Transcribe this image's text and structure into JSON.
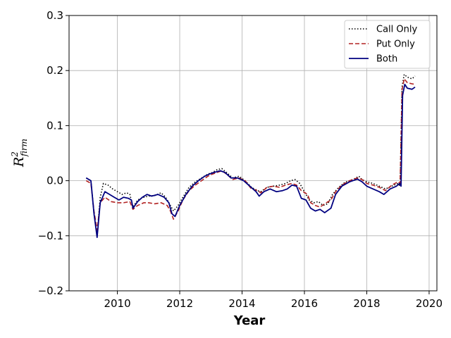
{
  "chart_data": {
    "type": "line",
    "xlabel": "Year",
    "ylabel": {
      "base": "R",
      "sup": "2",
      "sub": "firm"
    },
    "xlim": [
      2008.45,
      2020.25
    ],
    "ylim": [
      -0.2,
      0.3
    ],
    "xticks": [
      2010,
      2012,
      2014,
      2016,
      2018,
      2020
    ],
    "yticks": [
      -0.2,
      -0.1,
      0.0,
      0.1,
      0.2,
      0.3
    ],
    "xtick_labels": [
      "2010",
      "2012",
      "2014",
      "2016",
      "2018",
      "2020"
    ],
    "ytick_labels": [
      "−0.2",
      "−0.1",
      "0.0",
      "0.1",
      "0.2",
      "0.3"
    ],
    "grid": true,
    "legend_position": "top-right",
    "series": [
      {
        "name": "Call Only",
        "color": "#000000",
        "style": "dotted",
        "points": [
          [
            2009.0,
            0.005
          ],
          [
            2009.15,
            0.0
          ],
          [
            2009.25,
            -0.06
          ],
          [
            2009.35,
            -0.1
          ],
          [
            2009.45,
            -0.03
          ],
          [
            2009.55,
            -0.005
          ],
          [
            2009.7,
            -0.008
          ],
          [
            2009.85,
            -0.015
          ],
          [
            2010.0,
            -0.02
          ],
          [
            2010.15,
            -0.025
          ],
          [
            2010.3,
            -0.022
          ],
          [
            2010.4,
            -0.025
          ],
          [
            2010.5,
            -0.048
          ],
          [
            2010.65,
            -0.035
          ],
          [
            2010.85,
            -0.03
          ],
          [
            2011.0,
            -0.028
          ],
          [
            2011.2,
            -0.027
          ],
          [
            2011.4,
            -0.022
          ],
          [
            2011.55,
            -0.03
          ],
          [
            2011.7,
            -0.045
          ],
          [
            2011.8,
            -0.055
          ],
          [
            2011.95,
            -0.045
          ],
          [
            2012.1,
            -0.03
          ],
          [
            2012.3,
            -0.012
          ],
          [
            2012.5,
            -0.002
          ],
          [
            2012.7,
            0.005
          ],
          [
            2012.9,
            0.012
          ],
          [
            2013.05,
            0.015
          ],
          [
            2013.2,
            0.02
          ],
          [
            2013.35,
            0.022
          ],
          [
            2013.5,
            0.015
          ],
          [
            2013.7,
            0.005
          ],
          [
            2013.9,
            0.008
          ],
          [
            2014.1,
            0.0
          ],
          [
            2014.3,
            -0.012
          ],
          [
            2014.5,
            -0.018
          ],
          [
            2014.6,
            -0.02
          ],
          [
            2014.8,
            -0.012
          ],
          [
            2015.0,
            -0.01
          ],
          [
            2015.2,
            -0.008
          ],
          [
            2015.4,
            -0.005
          ],
          [
            2015.55,
            0.0
          ],
          [
            2015.7,
            0.002
          ],
          [
            2015.85,
            -0.005
          ],
          [
            2016.0,
            -0.02
          ],
          [
            2016.15,
            -0.035
          ],
          [
            2016.3,
            -0.04
          ],
          [
            2016.45,
            -0.038
          ],
          [
            2016.6,
            -0.045
          ],
          [
            2016.75,
            -0.042
          ],
          [
            2016.9,
            -0.025
          ],
          [
            2017.1,
            -0.012
          ],
          [
            2017.3,
            -0.003
          ],
          [
            2017.55,
            0.002
          ],
          [
            2017.75,
            0.008
          ],
          [
            2017.85,
            0.002
          ],
          [
            2018.0,
            -0.002
          ],
          [
            2018.2,
            -0.005
          ],
          [
            2018.4,
            -0.01
          ],
          [
            2018.6,
            -0.015
          ],
          [
            2018.8,
            -0.01
          ],
          [
            2019.0,
            -0.005
          ],
          [
            2019.07,
            -0.01
          ],
          [
            2019.13,
            0.17
          ],
          [
            2019.2,
            0.193
          ],
          [
            2019.3,
            0.188
          ],
          [
            2019.45,
            0.185
          ],
          [
            2019.55,
            0.19
          ]
        ]
      },
      {
        "name": "Put Only",
        "color": "#b22222",
        "style": "dashed",
        "points": [
          [
            2009.0,
            0.0
          ],
          [
            2009.15,
            -0.005
          ],
          [
            2009.25,
            -0.055
          ],
          [
            2009.35,
            -0.09
          ],
          [
            2009.45,
            -0.04
          ],
          [
            2009.6,
            -0.03
          ],
          [
            2009.8,
            -0.038
          ],
          [
            2010.0,
            -0.04
          ],
          [
            2010.2,
            -0.04
          ],
          [
            2010.4,
            -0.038
          ],
          [
            2010.5,
            -0.052
          ],
          [
            2010.65,
            -0.045
          ],
          [
            2010.85,
            -0.04
          ],
          [
            2011.0,
            -0.04
          ],
          [
            2011.2,
            -0.042
          ],
          [
            2011.4,
            -0.04
          ],
          [
            2011.6,
            -0.045
          ],
          [
            2011.7,
            -0.055
          ],
          [
            2011.8,
            -0.07
          ],
          [
            2011.95,
            -0.055
          ],
          [
            2012.1,
            -0.035
          ],
          [
            2012.3,
            -0.018
          ],
          [
            2012.5,
            -0.008
          ],
          [
            2012.7,
            0.0
          ],
          [
            2012.9,
            0.008
          ],
          [
            2013.05,
            0.012
          ],
          [
            2013.2,
            0.015
          ],
          [
            2013.35,
            0.018
          ],
          [
            2013.5,
            0.012
          ],
          [
            2013.7,
            0.002
          ],
          [
            2013.9,
            0.005
          ],
          [
            2014.1,
            0.0
          ],
          [
            2014.3,
            -0.015
          ],
          [
            2014.5,
            -0.018
          ],
          [
            2014.6,
            -0.022
          ],
          [
            2014.8,
            -0.012
          ],
          [
            2015.0,
            -0.01
          ],
          [
            2015.2,
            -0.012
          ],
          [
            2015.4,
            -0.008
          ],
          [
            2015.6,
            -0.005
          ],
          [
            2015.75,
            -0.008
          ],
          [
            2015.9,
            -0.018
          ],
          [
            2016.1,
            -0.025
          ],
          [
            2016.2,
            -0.04
          ],
          [
            2016.35,
            -0.045
          ],
          [
            2016.5,
            -0.048
          ],
          [
            2016.65,
            -0.042
          ],
          [
            2016.85,
            -0.035
          ],
          [
            2017.0,
            -0.02
          ],
          [
            2017.2,
            -0.008
          ],
          [
            2017.45,
            0.0
          ],
          [
            2017.7,
            0.005
          ],
          [
            2017.85,
            0.002
          ],
          [
            2018.0,
            -0.005
          ],
          [
            2018.2,
            -0.008
          ],
          [
            2018.4,
            -0.012
          ],
          [
            2018.6,
            -0.018
          ],
          [
            2018.8,
            -0.008
          ],
          [
            2019.0,
            -0.002
          ],
          [
            2019.07,
            -0.005
          ],
          [
            2019.13,
            0.165
          ],
          [
            2019.2,
            0.185
          ],
          [
            2019.3,
            0.178
          ],
          [
            2019.45,
            0.176
          ],
          [
            2019.55,
            0.175
          ]
        ]
      },
      {
        "name": "Both",
        "color": "#000080",
        "style": "solid",
        "points": [
          [
            2009.0,
            0.005
          ],
          [
            2009.15,
            0.0
          ],
          [
            2009.25,
            -0.06
          ],
          [
            2009.35,
            -0.103
          ],
          [
            2009.45,
            -0.04
          ],
          [
            2009.6,
            -0.02
          ],
          [
            2009.75,
            -0.025
          ],
          [
            2009.9,
            -0.03
          ],
          [
            2010.05,
            -0.035
          ],
          [
            2010.2,
            -0.03
          ],
          [
            2010.35,
            -0.032
          ],
          [
            2010.45,
            -0.035
          ],
          [
            2010.5,
            -0.05
          ],
          [
            2010.65,
            -0.038
          ],
          [
            2010.8,
            -0.03
          ],
          [
            2010.95,
            -0.025
          ],
          [
            2011.1,
            -0.028
          ],
          [
            2011.3,
            -0.025
          ],
          [
            2011.5,
            -0.03
          ],
          [
            2011.65,
            -0.04
          ],
          [
            2011.75,
            -0.06
          ],
          [
            2011.85,
            -0.065
          ],
          [
            2012.0,
            -0.045
          ],
          [
            2012.2,
            -0.025
          ],
          [
            2012.4,
            -0.01
          ],
          [
            2012.6,
            0.0
          ],
          [
            2012.8,
            0.008
          ],
          [
            2012.95,
            0.012
          ],
          [
            2013.1,
            0.015
          ],
          [
            2013.3,
            0.018
          ],
          [
            2013.45,
            0.015
          ],
          [
            2013.65,
            0.005
          ],
          [
            2013.85,
            0.005
          ],
          [
            2014.05,
            0.0
          ],
          [
            2014.25,
            -0.01
          ],
          [
            2014.45,
            -0.02
          ],
          [
            2014.55,
            -0.028
          ],
          [
            2014.7,
            -0.02
          ],
          [
            2014.9,
            -0.015
          ],
          [
            2015.1,
            -0.02
          ],
          [
            2015.3,
            -0.018
          ],
          [
            2015.45,
            -0.015
          ],
          [
            2015.6,
            -0.008
          ],
          [
            2015.75,
            -0.01
          ],
          [
            2015.9,
            -0.032
          ],
          [
            2016.05,
            -0.035
          ],
          [
            2016.2,
            -0.05
          ],
          [
            2016.35,
            -0.055
          ],
          [
            2016.5,
            -0.052
          ],
          [
            2016.65,
            -0.058
          ],
          [
            2016.85,
            -0.05
          ],
          [
            2017.0,
            -0.025
          ],
          [
            2017.2,
            -0.01
          ],
          [
            2017.45,
            -0.002
          ],
          [
            2017.7,
            0.003
          ],
          [
            2017.85,
            -0.002
          ],
          [
            2018.0,
            -0.01
          ],
          [
            2018.2,
            -0.015
          ],
          [
            2018.4,
            -0.02
          ],
          [
            2018.55,
            -0.025
          ],
          [
            2018.75,
            -0.015
          ],
          [
            2018.95,
            -0.01
          ],
          [
            2019.05,
            -0.005
          ],
          [
            2019.1,
            -0.01
          ],
          [
            2019.15,
            0.155
          ],
          [
            2019.22,
            0.175
          ],
          [
            2019.3,
            0.168
          ],
          [
            2019.45,
            0.166
          ],
          [
            2019.55,
            0.17
          ]
        ]
      }
    ]
  }
}
